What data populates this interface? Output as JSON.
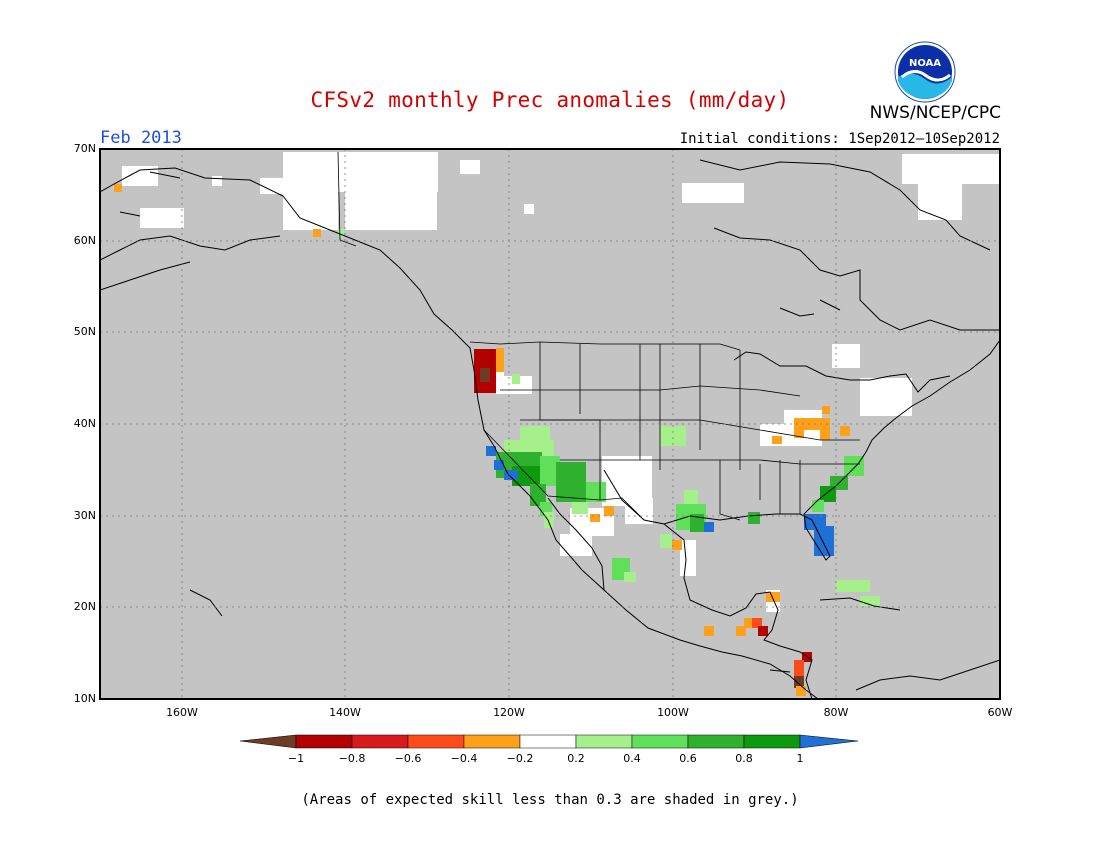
{
  "header": {
    "title": "CFSv2 monthly Prec anomalies (mm/day)",
    "agency": "NWS/NCEP/CPC",
    "logo_text": "NOAA",
    "valid_month": "Feb 2013",
    "initial_conditions": "Initial conditions: 1Sep2012—10Sep2012"
  },
  "map": {
    "lat_range": [
      10,
      70
    ],
    "lon_range": [
      -170,
      -60
    ],
    "lat_labels": [
      "70N",
      "60N",
      "50N",
      "40N",
      "30N",
      "20N",
      "10N"
    ],
    "lon_labels": [
      "160W",
      "140W",
      "120W",
      "100W",
      "80W",
      "60W"
    ],
    "grey_meaning": "skill less than 0.3",
    "colors": {
      "skill_mask": "#c4c4c4",
      "neutral": "#ffffff",
      "coast": "#000000"
    }
  },
  "colorbar": {
    "labels": [
      "−1",
      "−0.8",
      "−0.6",
      "−0.4",
      "−0.2",
      "0.2",
      "0.4",
      "0.6",
      "0.8",
      "1"
    ],
    "colors": [
      "#6e3b24",
      "#b30000",
      "#d81a1a",
      "#ff4a1a",
      "#ffa01a",
      "#ffffff",
      "#a6f08c",
      "#60e05a",
      "#2fb02f",
      "#0d9a0d",
      "#1e6fd6"
    ]
  },
  "footnote": "(Areas of expected skill less than 0.3 are shaded in grey.)"
}
